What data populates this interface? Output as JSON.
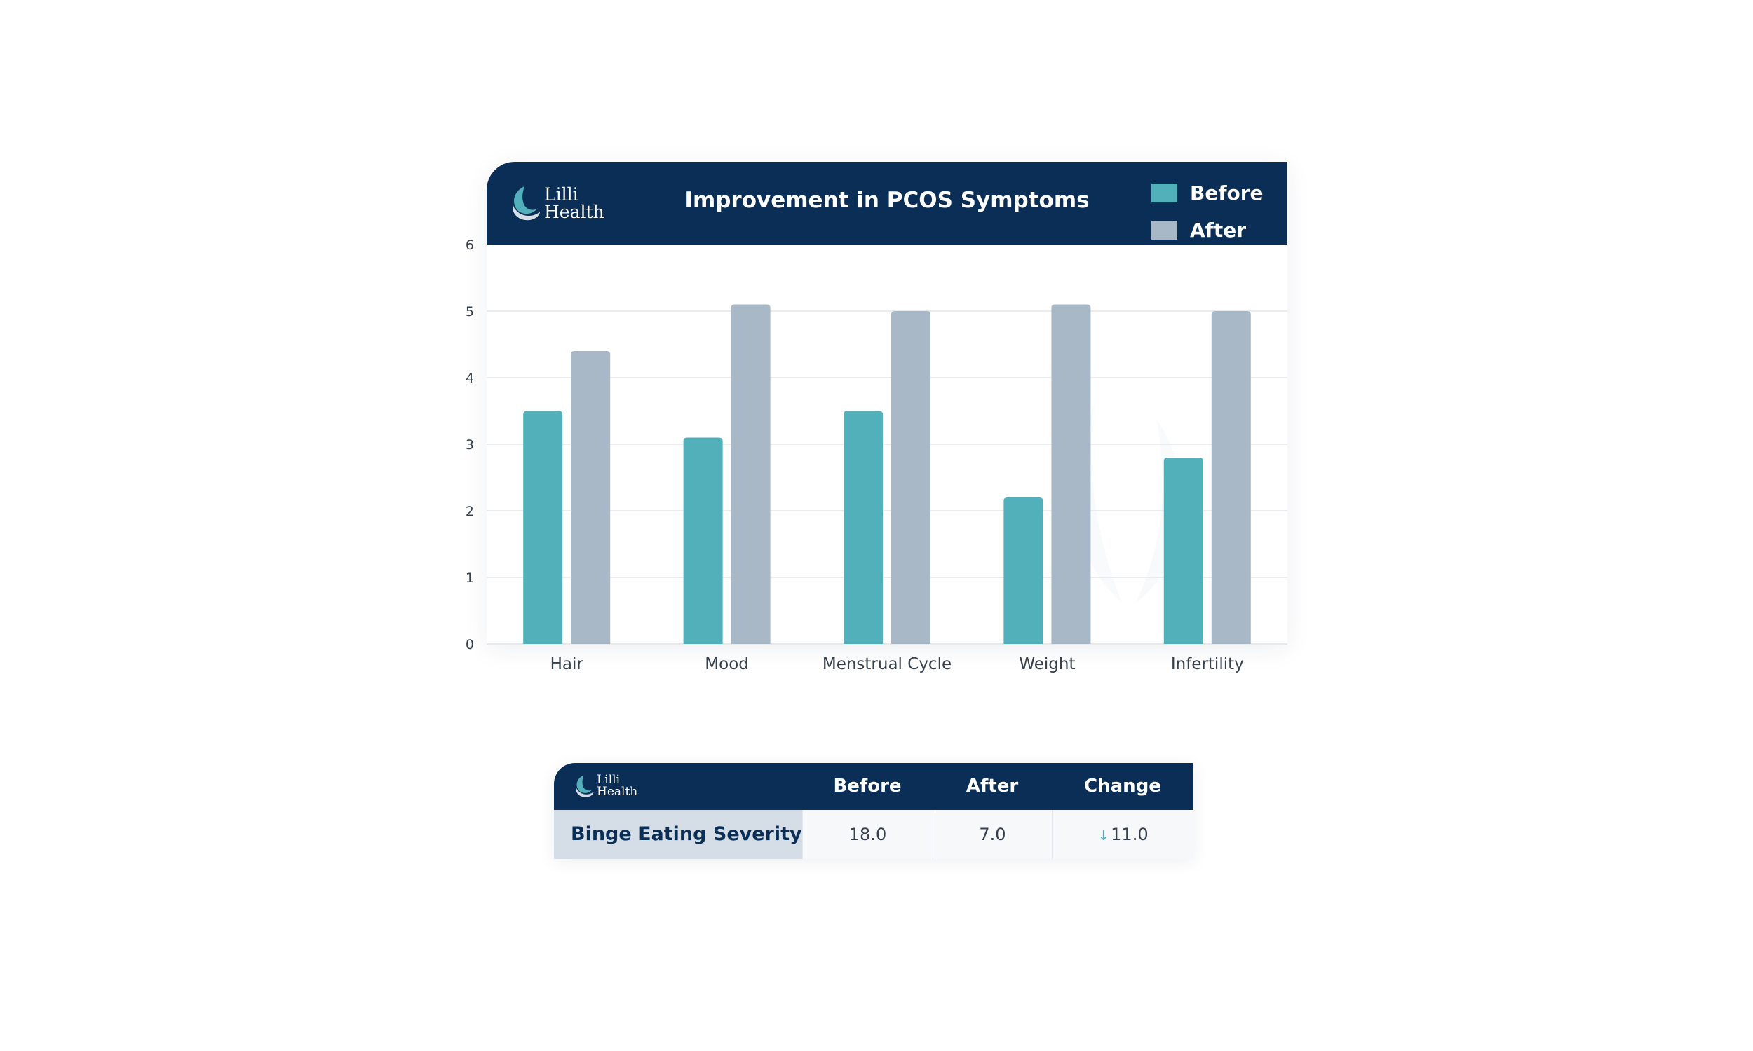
{
  "brand": {
    "line1": "Lilli",
    "line2": "Health"
  },
  "colors": {
    "header": "#0a2e55",
    "before": "#52b0bb",
    "after": "#a9b8c7"
  },
  "chart_data": {
    "type": "bar",
    "title": "Improvement in PCOS Symptoms",
    "categories": [
      "Hair",
      "Mood",
      "Menstrual Cycle",
      "Weight",
      "Infertility"
    ],
    "series": [
      {
        "name": "Before",
        "color": "#52b0bb",
        "values": [
          3.5,
          3.1,
          3.5,
          2.2,
          2.8
        ]
      },
      {
        "name": "After",
        "color": "#a9b8c7",
        "values": [
          4.4,
          5.1,
          5.0,
          5.1,
          5.0
        ]
      }
    ],
    "ylim": [
      0,
      6
    ],
    "yticks": [
      "0",
      "1",
      "2",
      "3",
      "4",
      "5",
      "6"
    ],
    "grid": true,
    "legend_position": "top-right"
  },
  "table": {
    "columns": [
      "Before",
      "After",
      "Change"
    ],
    "row": {
      "label": "Binge Eating Severity",
      "before": "18.0",
      "after": "7.0",
      "change": "11.0",
      "change_direction": "down"
    }
  }
}
